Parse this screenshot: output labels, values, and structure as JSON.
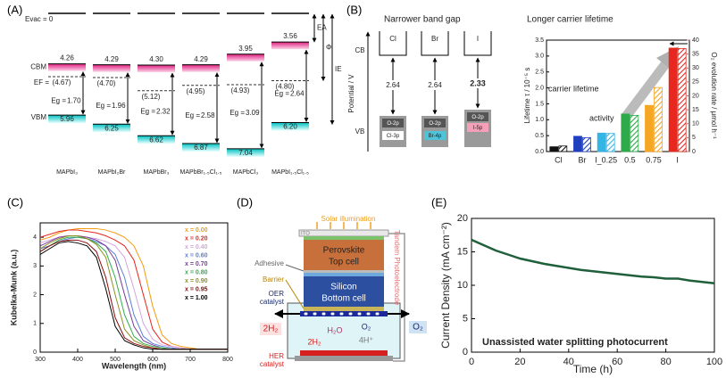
{
  "chart_data": [
    {
      "type": "energy-level",
      "panel_label": "(A)",
      "vacuum_label": "Evac = 0",
      "categories": [
        "MAPbI₃",
        "MAPbI₂Br",
        "MAPbBr₃",
        "MAPbBr₁.₅Cl₁.₅",
        "MAPbCl₃",
        "MAPbI₁.₅Cl₁.₅"
      ],
      "ylim": [
        3.3,
        7.3
      ],
      "cbm": {
        "name": "CBM",
        "values": [
          4.26,
          4.29,
          4.3,
          4.29,
          3.95,
          3.56
        ],
        "value_labels": [
          "4.26",
          "4.29",
          "4.30",
          "4.29",
          "3.95",
          "3.56"
        ]
      },
      "vbm": {
        "name": "VBM",
        "values": [
          5.96,
          6.25,
          6.62,
          6.87,
          7.04,
          6.2
        ],
        "value_labels": [
          "5.96",
          "6.25",
          "6.62",
          "6.87",
          "7.04",
          "6.20"
        ]
      },
      "ef": {
        "name": "EF =",
        "values": [
          4.67,
          4.7,
          5.12,
          4.95,
          4.93,
          4.8
        ],
        "value_labels": [
          "(4.67)",
          "(4.70)",
          "(5.12)",
          "(4.95)",
          "(4.93)",
          "(4.80)"
        ]
      },
      "eg": {
        "name": "Eg =",
        "values": [
          1.7,
          1.96,
          2.32,
          2.58,
          3.09,
          2.64
        ],
        "value_labels": [
          "1.70",
          "1.96",
          "2.32",
          "2.58",
          "3.09",
          "2.64"
        ]
      },
      "side_labels": [
        "EA",
        "Φ",
        "IE"
      ]
    },
    {
      "type": "bar",
      "panel_label": "(B)",
      "title": "Longer carrier lifetime",
      "categories": [
        "Cl",
        "Br",
        "I_0.25",
        "0.5",
        "0.75",
        "I"
      ],
      "colors": [
        "#111111",
        "#1f3fbf",
        "#33b5e5",
        "#2eaa4a",
        "#f5a623",
        "#e8281e"
      ],
      "series": [
        {
          "name": "carrier lifetime",
          "values": [
            0.15,
            0.48,
            0.58,
            1.18,
            1.45,
            3.25
          ]
        },
        {
          "name": "activity",
          "axis": "y2",
          "hatched": true,
          "values": [
            2,
            5,
            6.5,
            13,
            23,
            37
          ]
        }
      ],
      "ylabel": "Lifetime τ / 10⁻⁵ s",
      "y2label": "O₂ evolution rate / μmol h⁻¹",
      "ylim": [
        0,
        3.5
      ],
      "yticks": [
        {
          "value": 0,
          "label": "0.0"
        },
        0.5,
        {
          "value": 1,
          "label": "1.0"
        },
        1.5,
        {
          "value": 2,
          "label": "2.0"
        },
        2.5,
        {
          "value": 3,
          "label": "3.0"
        },
        3.5
      ],
      "y2lim": [
        0,
        40
      ],
      "y2ticks": [
        0,
        5,
        10,
        15,
        20,
        25,
        30,
        35,
        40
      ]
    },
    {
      "type": "line",
      "panel_label": "(C)",
      "xlabel": "Wavelength (nm)",
      "ylabel": "Kubelka-Munk (a.u.)",
      "x": [
        300,
        325,
        350,
        375,
        400,
        425,
        450,
        475,
        500,
        525,
        550,
        575,
        600,
        625,
        650,
        675,
        700,
        725,
        750,
        775,
        800
      ],
      "xlim": [
        300,
        800
      ],
      "xticks": [
        300,
        400,
        500,
        600,
        700,
        800
      ],
      "ylim": [
        0,
        4.5
      ],
      "yticks": [
        0,
        1,
        2,
        3,
        4
      ],
      "legend": "upper right",
      "series": [
        {
          "name": "x = 0.00",
          "color": "#f39c12",
          "values": [
            3.9,
            4.0,
            4.15,
            4.25,
            4.3,
            4.3,
            4.3,
            4.25,
            4.15,
            4.0,
            3.7,
            3.0,
            1.6,
            0.6,
            0.3,
            0.2,
            0.15,
            0.1,
            0.1,
            0.1,
            0.1
          ]
        },
        {
          "name": "x = 0.20",
          "color": "#e6261f",
          "values": [
            4.0,
            4.1,
            4.2,
            4.25,
            4.25,
            4.2,
            4.15,
            4.05,
            3.9,
            3.7,
            3.2,
            2.0,
            0.8,
            0.35,
            0.2,
            0.15,
            0.1,
            0.1,
            0.1,
            0.1,
            0.1
          ]
        },
        {
          "name": "x = 0.40",
          "color": "#d4a5e0",
          "values": [
            3.8,
            3.9,
            4.0,
            4.05,
            4.05,
            4.0,
            3.95,
            3.85,
            3.7,
            3.3,
            2.2,
            1.0,
            0.45,
            0.25,
            0.2,
            0.15,
            0.1,
            0.1,
            0.1,
            0.1,
            0.1
          ]
        },
        {
          "name": "x = 0.60",
          "color": "#5b7fd6",
          "values": [
            3.6,
            3.7,
            3.85,
            3.95,
            4.0,
            3.95,
            3.85,
            3.7,
            3.4,
            2.6,
            1.3,
            0.55,
            0.3,
            0.2,
            0.15,
            0.1,
            0.1,
            0.1,
            0.1,
            0.1,
            0.1
          ]
        },
        {
          "name": "x = 0.70",
          "color": "#7a3b9c",
          "values": [
            3.7,
            3.85,
            4.0,
            4.05,
            4.05,
            4.0,
            3.9,
            3.7,
            3.2,
            2.0,
            0.9,
            0.4,
            0.25,
            0.15,
            0.1,
            0.1,
            0.1,
            0.1,
            0.1,
            0.1,
            0.1
          ]
        },
        {
          "name": "x = 0.80",
          "color": "#2fae4a",
          "values": [
            3.5,
            3.7,
            3.9,
            4.0,
            4.0,
            3.95,
            3.8,
            3.5,
            2.6,
            1.3,
            0.55,
            0.3,
            0.2,
            0.15,
            0.1,
            0.1,
            0.1,
            0.1,
            0.1,
            0.1,
            0.1
          ]
        },
        {
          "name": "x = 0.90",
          "color": "#8f8f24",
          "values": [
            3.6,
            3.8,
            3.95,
            4.05,
            4.05,
            3.95,
            3.75,
            3.3,
            2.0,
            0.8,
            0.4,
            0.25,
            0.15,
            0.1,
            0.1,
            0.1,
            0.1,
            0.1,
            0.1,
            0.1,
            0.1
          ]
        },
        {
          "name": "x = 0.95",
          "color": "#8b0a0a",
          "values": [
            3.5,
            3.7,
            3.85,
            3.9,
            3.9,
            3.8,
            3.5,
            2.6,
            1.2,
            0.5,
            0.3,
            0.2,
            0.15,
            0.1,
            0.1,
            0.1,
            0.1,
            0.1,
            0.1,
            0.1,
            0.1
          ]
        },
        {
          "name": "x = 1.00",
          "color": "#000000",
          "values": [
            3.4,
            3.6,
            3.8,
            3.85,
            3.8,
            3.7,
            3.3,
            2.2,
            0.9,
            0.4,
            0.25,
            0.15,
            0.1,
            0.1,
            0.1,
            0.1,
            0.1,
            0.1,
            0.1,
            0.1,
            0.1
          ]
        }
      ]
    },
    {
      "type": "line",
      "panel_label": "(E)",
      "xlabel": "Time (h)",
      "ylabel": "Current Density (mA cm⁻²)",
      "annotation": "Unassisted water splitting photocurrent",
      "x": [
        0,
        5,
        10,
        15,
        20,
        25,
        30,
        35,
        40,
        45,
        50,
        55,
        60,
        65,
        70,
        75,
        80,
        85,
        90,
        95,
        100
      ],
      "xlim": [
        0,
        100
      ],
      "xticks": [
        0,
        20,
        40,
        60,
        80,
        100
      ],
      "ylim": [
        0,
        20
      ],
      "yticks": [
        0,
        5,
        10,
        15,
        20
      ],
      "series": [
        {
          "color": "#1f5f3a",
          "values": [
            16.8,
            16.0,
            15.2,
            14.6,
            14.0,
            13.6,
            13.2,
            12.9,
            12.6,
            12.3,
            12.1,
            11.9,
            11.7,
            11.5,
            11.3,
            11.2,
            11.0,
            11.0,
            10.7,
            10.5,
            10.3
          ]
        }
      ]
    }
  ],
  "panel_b_left": {
    "title": "Narrower band gap",
    "axis_label": "Potential / V",
    "cb_label": "CB",
    "vb_label": "VB",
    "columns": [
      {
        "halide": "Cl",
        "gap": 2.64,
        "orbital_top": "O-2p",
        "orbital_bottom": "Cl-3p"
      },
      {
        "halide": "Br",
        "gap": 2.64,
        "orbital_top": "O-2p",
        "orbital_bottom": "Br-4p"
      },
      {
        "halide": "I",
        "gap": 2.33,
        "orbital_top": "O-2p",
        "orbital_bottom": "I-5p"
      }
    ]
  },
  "panel_d": {
    "panel_label": "(D)",
    "illumination": "Solar illumination",
    "ito": "ITO",
    "top_cell": [
      "Perovskite",
      "Top cell"
    ],
    "bottom_cell": [
      "Silicon",
      "Bottom cell"
    ],
    "adhesive": "Adhesive",
    "barrier": "Barrier",
    "oer": [
      "OER",
      "catalyst"
    ],
    "her": [
      "HER",
      "catalyst"
    ],
    "h2_left": "2H₂",
    "h2_inside": "2H₂",
    "h2o": "H₂O",
    "o2_inside": "O₂",
    "protons": "4H⁺",
    "o2_right": "O₂",
    "electrode": "Tandem Photoelectrode"
  }
}
